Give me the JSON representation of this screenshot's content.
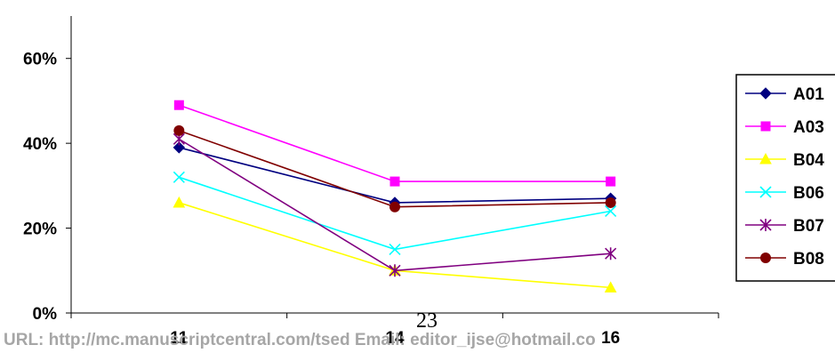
{
  "chart_data": {
    "type": "line",
    "title": "",
    "xlabel": "",
    "ylabel": "",
    "categories": [
      "11",
      "14",
      "16"
    ],
    "ylim": [
      0,
      0.7
    ],
    "yticks": [
      0,
      0.2,
      0.4,
      0.6
    ],
    "ytick_labels": [
      "0%",
      "20%",
      "40%",
      "60%"
    ],
    "grid": false,
    "legend_position": "right",
    "series": [
      {
        "name": "A01",
        "color": "#000080",
        "marker": "diamond",
        "values": [
          0.39,
          0.26,
          0.27
        ]
      },
      {
        "name": "A03",
        "color": "#ff00ff",
        "marker": "square",
        "values": [
          0.49,
          0.31,
          0.31
        ]
      },
      {
        "name": "B04",
        "color": "#ffff00",
        "marker": "triangle",
        "values": [
          0.26,
          0.1,
          0.06
        ]
      },
      {
        "name": "B06",
        "color": "#00ffff",
        "marker": "x",
        "values": [
          0.32,
          0.15,
          0.24
        ]
      },
      {
        "name": "B07",
        "color": "#800080",
        "marker": "star",
        "values": [
          0.41,
          0.1,
          0.14
        ]
      },
      {
        "name": "B08",
        "color": "#800000",
        "marker": "circle",
        "values": [
          0.43,
          0.25,
          0.26
        ]
      }
    ]
  },
  "page_number": "23",
  "footer": "URL: http://mc.manuscriptcentral.com/tsed  Email: editor_ijse@hotmail.co"
}
